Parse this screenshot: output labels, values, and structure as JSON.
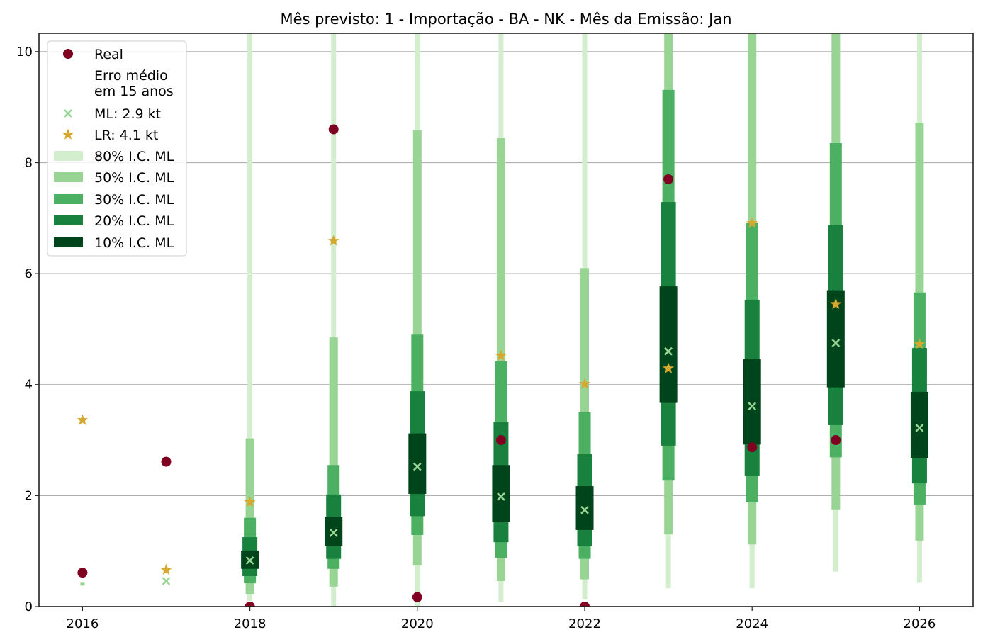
{
  "chart_data": {
    "type": "interval-scatter",
    "title": "Mês previsto: 1 - Importação - BA - NK - Mês da Emissão: Jan",
    "xlabel": "",
    "ylabel": "",
    "xlim": [
      2015.48,
      2026.64
    ],
    "ylim": [
      0,
      10.33
    ],
    "xticks": [
      "2016",
      "2018",
      "2020",
      "2022",
      "2024",
      "2026"
    ],
    "yticks": [
      "0",
      "2",
      "4",
      "6",
      "8",
      "10"
    ],
    "grid": "horizontal",
    "legend_position": "top-left",
    "colors": {
      "real": "#7f0020",
      "lr": "#d6a830",
      "ml": "#98d594",
      "ci80": "#d3eecd",
      "ci50": "#98d594",
      "ci30": "#4bb062",
      "ci20": "#17813d",
      "ci10": "#00441b"
    },
    "legend": {
      "real": "Real",
      "erro_line1": "Erro médio",
      "erro_line2": "em 15 anos",
      "ml": "ML: 2.9 kt",
      "lr": "LR: 4.1 kt",
      "ci80": "80% I.C. ML",
      "ci50": "50% I.C. ML",
      "ci30": "30% I.C. ML",
      "ci20": "20% I.C. ML",
      "ci10": "10% I.C. ML"
    },
    "points": [
      {
        "year": 2016,
        "real": 0.61,
        "lr": 3.36,
        "ml": 0.41,
        "ci80": null,
        "ci50": [
          0.39,
          0.43
        ],
        "ci30": null,
        "ci20": null,
        "ci10": null,
        "ml_marker": "square"
      },
      {
        "year": 2017,
        "real": 2.61,
        "lr": 0.66,
        "ml": 0.46,
        "ci80": null,
        "ci50": null,
        "ci30": null,
        "ci20": null,
        "ci10": null
      },
      {
        "year": 2018,
        "real": 0.0,
        "lr": 1.88,
        "ml": 0.83,
        "ci80": [
          0.1,
          10.5
        ],
        "ci50": [
          0.23,
          3.03
        ],
        "ci30": [
          0.42,
          1.6
        ],
        "ci20": [
          0.55,
          1.25
        ],
        "ci10": [
          0.68,
          1.01
        ]
      },
      {
        "year": 2019,
        "real": 8.6,
        "lr": 6.59,
        "ml": 1.33,
        "ci80": [
          -0.1,
          10.5
        ],
        "ci50": [
          0.36,
          4.85
        ],
        "ci30": [
          0.68,
          2.55
        ],
        "ci20": [
          0.86,
          2.02
        ],
        "ci10": [
          1.09,
          1.62
        ]
      },
      {
        "year": 2020,
        "real": 0.17,
        "lr": null,
        "ml": 2.52,
        "ci80": [
          0.0,
          10.5
        ],
        "ci50": [
          0.74,
          8.58
        ],
        "ci30": [
          1.29,
          4.9
        ],
        "ci20": [
          1.63,
          3.88
        ],
        "ci10": [
          2.03,
          3.12
        ]
      },
      {
        "year": 2021,
        "real": 3.0,
        "lr": 4.52,
        "ml": 1.98,
        "ci80": [
          0.08,
          10.5
        ],
        "ci50": [
          0.46,
          8.44
        ],
        "ci30": [
          0.88,
          4.42
        ],
        "ci20": [
          1.16,
          3.33
        ],
        "ci10": [
          1.52,
          2.55
        ]
      },
      {
        "year": 2022,
        "real": 0.0,
        "lr": 4.01,
        "ml": 1.74,
        "ci80": [
          0.13,
          10.5
        ],
        "ci50": [
          0.49,
          6.1
        ],
        "ci30": [
          0.86,
          3.5
        ],
        "ci20": [
          1.09,
          2.75
        ],
        "ci10": [
          1.38,
          2.17
        ]
      },
      {
        "year": 2023,
        "real": 7.7,
        "lr": 4.29,
        "ml": 4.6,
        "ci80": [
          0.33,
          10.5
        ],
        "ci50": [
          1.3,
          10.5
        ],
        "ci30": [
          2.27,
          9.31
        ],
        "ci20": [
          2.9,
          7.29
        ],
        "ci10": [
          3.67,
          5.77
        ]
      },
      {
        "year": 2024,
        "real": 2.87,
        "lr": 6.91,
        "ml": 3.61,
        "ci80": [
          0.33,
          10.5
        ],
        "ci50": [
          1.12,
          10.5
        ],
        "ci30": [
          1.88,
          6.92
        ],
        "ci20": [
          2.35,
          5.53
        ],
        "ci10": [
          2.92,
          4.46
        ]
      },
      {
        "year": 2025,
        "real": 3.0,
        "lr": 5.45,
        "ml": 4.75,
        "ci80": [
          0.63,
          10.5
        ],
        "ci50": [
          1.74,
          10.5
        ],
        "ci30": [
          2.69,
          8.35
        ],
        "ci20": [
          3.27,
          6.87
        ],
        "ci10": [
          3.95,
          5.7
        ]
      },
      {
        "year": 2026,
        "real": null,
        "lr": 4.73,
        "ml": 3.22,
        "ci80": [
          0.43,
          10.5
        ],
        "ci50": [
          1.19,
          8.72
        ],
        "ci30": [
          1.84,
          5.66
        ],
        "ci20": [
          2.22,
          4.66
        ],
        "ci10": [
          2.68,
          3.87
        ]
      }
    ]
  }
}
